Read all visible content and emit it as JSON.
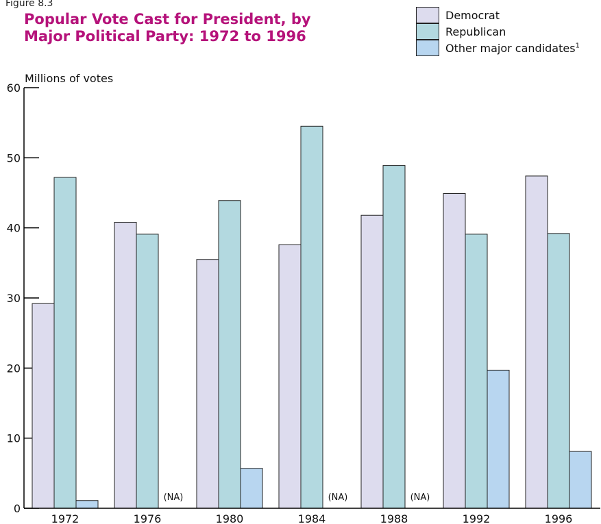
{
  "figure_label": "Figure 8.3",
  "title_line1": "Popular Vote Cast for President, by",
  "title_line2": "Major Political Party:  1972 to 1996",
  "legend": [
    {
      "label": "Democrat",
      "color": "#dddcee"
    },
    {
      "label": "Republican",
      "color": "#b3d9e0"
    },
    {
      "label": "Other major candidates",
      "color": "#b8d6f0",
      "footnote": "1"
    }
  ],
  "colors": {
    "axis": "#000000",
    "bar_stroke": "#222222",
    "title": "#b5127a"
  },
  "chart_data": {
    "type": "bar",
    "ylabel": "Millions of votes",
    "ylim": [
      0,
      60
    ],
    "yticks": [
      0,
      10,
      20,
      30,
      40,
      50,
      60
    ],
    "categories": [
      "1972",
      "1976",
      "1980",
      "1984",
      "1988",
      "1992",
      "1996"
    ],
    "series": [
      {
        "name": "Democrat",
        "values": [
          29.2,
          40.8,
          35.5,
          37.6,
          41.8,
          44.9,
          47.4
        ]
      },
      {
        "name": "Republican",
        "values": [
          47.2,
          39.1,
          43.9,
          54.5,
          48.9,
          39.1,
          39.2
        ]
      },
      {
        "name": "Other major candidates",
        "values": [
          1.1,
          null,
          5.7,
          null,
          null,
          19.7,
          8.1
        ]
      }
    ],
    "na_label": "(NA)"
  }
}
